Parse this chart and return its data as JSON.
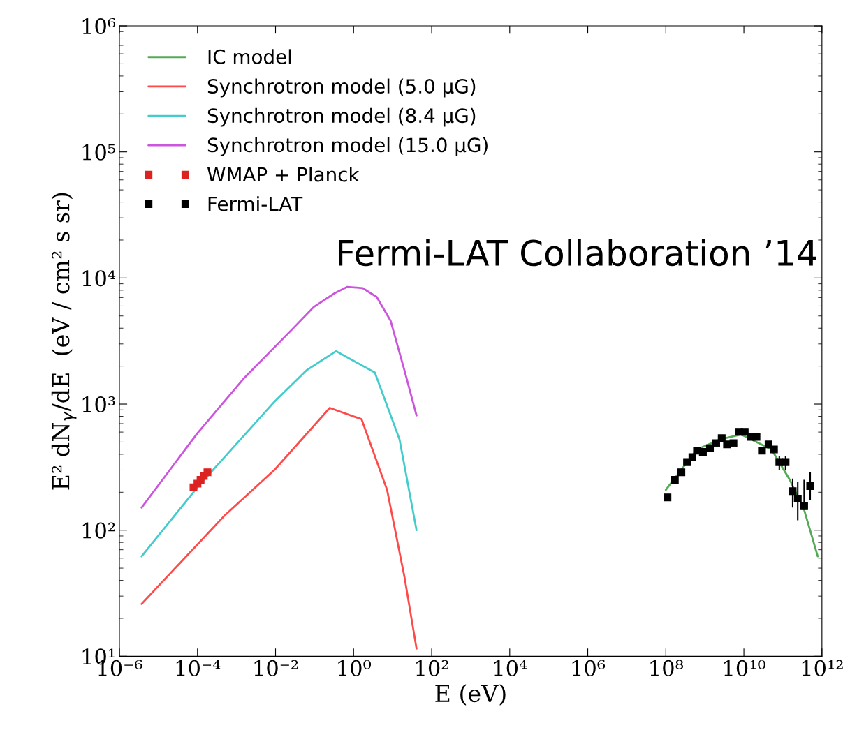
{
  "chart_data": {
    "type": "line",
    "xlabel": "E (eV)",
    "ylabel": "E² dN$_{γ}$/dE  (eV / cm² s sr)",
    "log": "xy",
    "xlim": [
      1e-06,
      1000000000000.0
    ],
    "ylim": [
      10,
      1000000
    ],
    "xticks": [
      {
        "value": 1e-06,
        "label": "10⁻⁶"
      },
      {
        "value": 0.0001,
        "label": "10⁻⁴"
      },
      {
        "value": 0.01,
        "label": "10⁻²"
      },
      {
        "value": 1,
        "label": "10⁰"
      },
      {
        "value": 100,
        "label": "10²"
      },
      {
        "value": 10000,
        "label": "10⁴"
      },
      {
        "value": 1000000,
        "label": "10⁶"
      },
      {
        "value": 100000000.0,
        "label": "10⁸"
      },
      {
        "value": 10000000000.0,
        "label": "10¹⁰"
      },
      {
        "value": 1000000000000.0,
        "label": "10¹²"
      }
    ],
    "yticks": [
      {
        "value": 10,
        "label": "10¹"
      },
      {
        "value": 100,
        "label": "10²"
      },
      {
        "value": 1000,
        "label": "10³"
      },
      {
        "value": 10000,
        "label": "10⁴"
      },
      {
        "value": 100000,
        "label": "10⁵"
      },
      {
        "value": 1000000,
        "label": "10⁶"
      }
    ],
    "grid": false,
    "legend": "top left",
    "series": [
      {
        "name": "IC model",
        "color": "#55aa55",
        "x": [
          100000000.0,
          630000000.0,
          2500000000.0,
          8500000000.0,
          51000000000.0,
          150000000000.0,
          350000000000.0,
          780000000000.0
        ],
        "values": [
          209,
          437,
          525,
          575,
          437,
          251,
          145,
          62
        ]
      },
      {
        "name": "Synchrotron model (5.0 μG)",
        "color": "#ff4a4a",
        "x": [
          3.7e-06,
          0.00051,
          0.0095,
          0.245,
          1.6,
          7.2,
          20,
          41
        ],
        "values": [
          26,
          132,
          302,
          933,
          759,
          209,
          43,
          11.5
        ]
      },
      {
        "name": "Synchrotron model (8.4 μG)",
        "color": "#44cccc",
        "x": [
          3.7e-06,
          0.0001,
          0.0095,
          0.063,
          0.355,
          3.5,
          15,
          41
        ],
        "values": [
          62,
          219,
          1050,
          1860,
          2630,
          1780,
          525,
          100
        ]
      },
      {
        "name": "Synchrotron model (15.0 μG)",
        "color": "#cc55dd",
        "x": [
          3.7e-06,
          0.0001,
          0.0016,
          0.028,
          0.095,
          0.33,
          0.69,
          1.7,
          3.9,
          8.9,
          20,
          41
        ],
        "values": [
          151,
          589,
          1620,
          3980,
          5890,
          7590,
          8510,
          8320,
          7080,
          4570,
          1860,
          813
        ]
      },
      {
        "name": "WMAP + Planck",
        "type": "scatter",
        "color": "#dd2222",
        "x": [
          7.9e-05,
          0.0001,
          0.00012,
          0.000145,
          0.00018
        ],
        "values": [
          219,
          234,
          251,
          269,
          288
        ]
      },
      {
        "name": "Fermi-LAT",
        "type": "scatter",
        "color": "#000000",
        "x": [
          110000000.0,
          170000000.0,
          250000000.0,
          350000000.0,
          480000000.0,
          630000000.0,
          890000000.0,
          1350000000.0,
          1950000000.0,
          2700000000.0,
          3700000000.0,
          5400000000.0,
          7500000000.0,
          10500000000.0,
          15000000000.0,
          21000000000.0,
          29000000000.0,
          43000000000.0,
          59000000000.0,
          81000000000.0,
          117000000000.0,
          178000000000.0,
          240000000000.0,
          350000000000.0,
          500000000000.0
        ],
        "values": [
          182,
          251,
          288,
          347,
          380,
          427,
          417,
          447,
          490,
          537,
          479,
          490,
          603,
          603,
          550,
          550,
          427,
          479,
          437,
          347,
          347,
          204,
          178,
          155,
          224
        ],
        "errors": [
          null,
          null,
          null,
          null,
          null,
          null,
          null,
          null,
          null,
          null,
          null,
          null,
          null,
          null,
          null,
          null,
          null,
          null,
          null,
          [
            302,
            389
          ],
          [
            302,
            389
          ],
          [
            151,
            257
          ],
          [
            120,
            240
          ],
          [
            148,
            251
          ],
          [
            174,
            288
          ]
        ]
      }
    ],
    "annotations": [
      {
        "text": "Fermi-LAT Collaboration ’14"
      }
    ]
  }
}
